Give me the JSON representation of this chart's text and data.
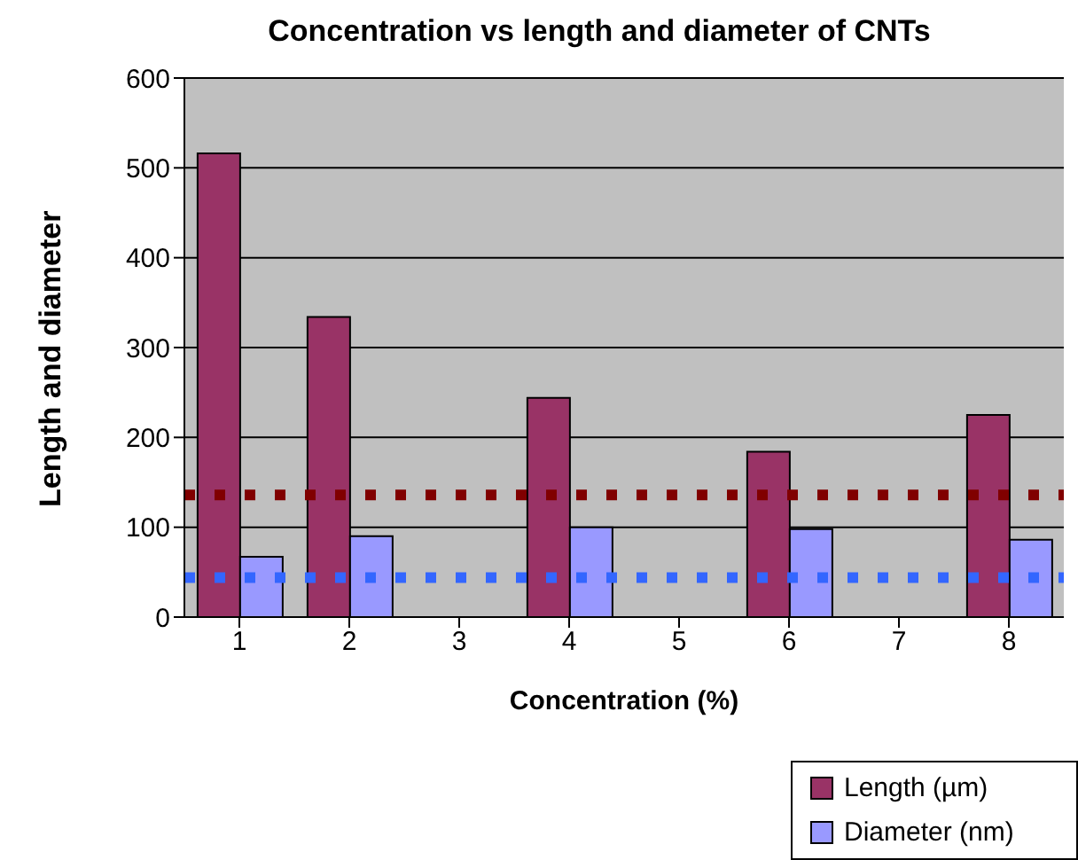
{
  "chart_data": {
    "type": "bar",
    "title": "Concentration vs length and diameter of CNTs",
    "xlabel": "Concentration (%)",
    "ylabel": "Length and diameter",
    "categories": [
      "1",
      "2",
      "3",
      "4",
      "5",
      "6",
      "7",
      "8"
    ],
    "series": [
      {
        "name": "Length (µm)",
        "color": "#993366",
        "values": [
          516,
          334,
          null,
          244,
          null,
          184,
          null,
          225
        ]
      },
      {
        "name": "Diameter (nm)",
        "color": "#9999ff",
        "values": [
          67,
          90,
          null,
          100,
          null,
          98,
          null,
          86
        ]
      }
    ],
    "ylim": [
      0,
      600
    ],
    "yticks": [
      0,
      100,
      200,
      300,
      400,
      500,
      600
    ],
    "grid": "y",
    "legend": "bottom right",
    "ref_lines": [
      {
        "axis": "y",
        "value": 136,
        "label": null,
        "color": "#800000",
        "line_style": "dotted"
      },
      {
        "axis": "y",
        "value": 44,
        "label": null,
        "color": "#3366ff",
        "line_style": "dotted"
      }
    ]
  }
}
